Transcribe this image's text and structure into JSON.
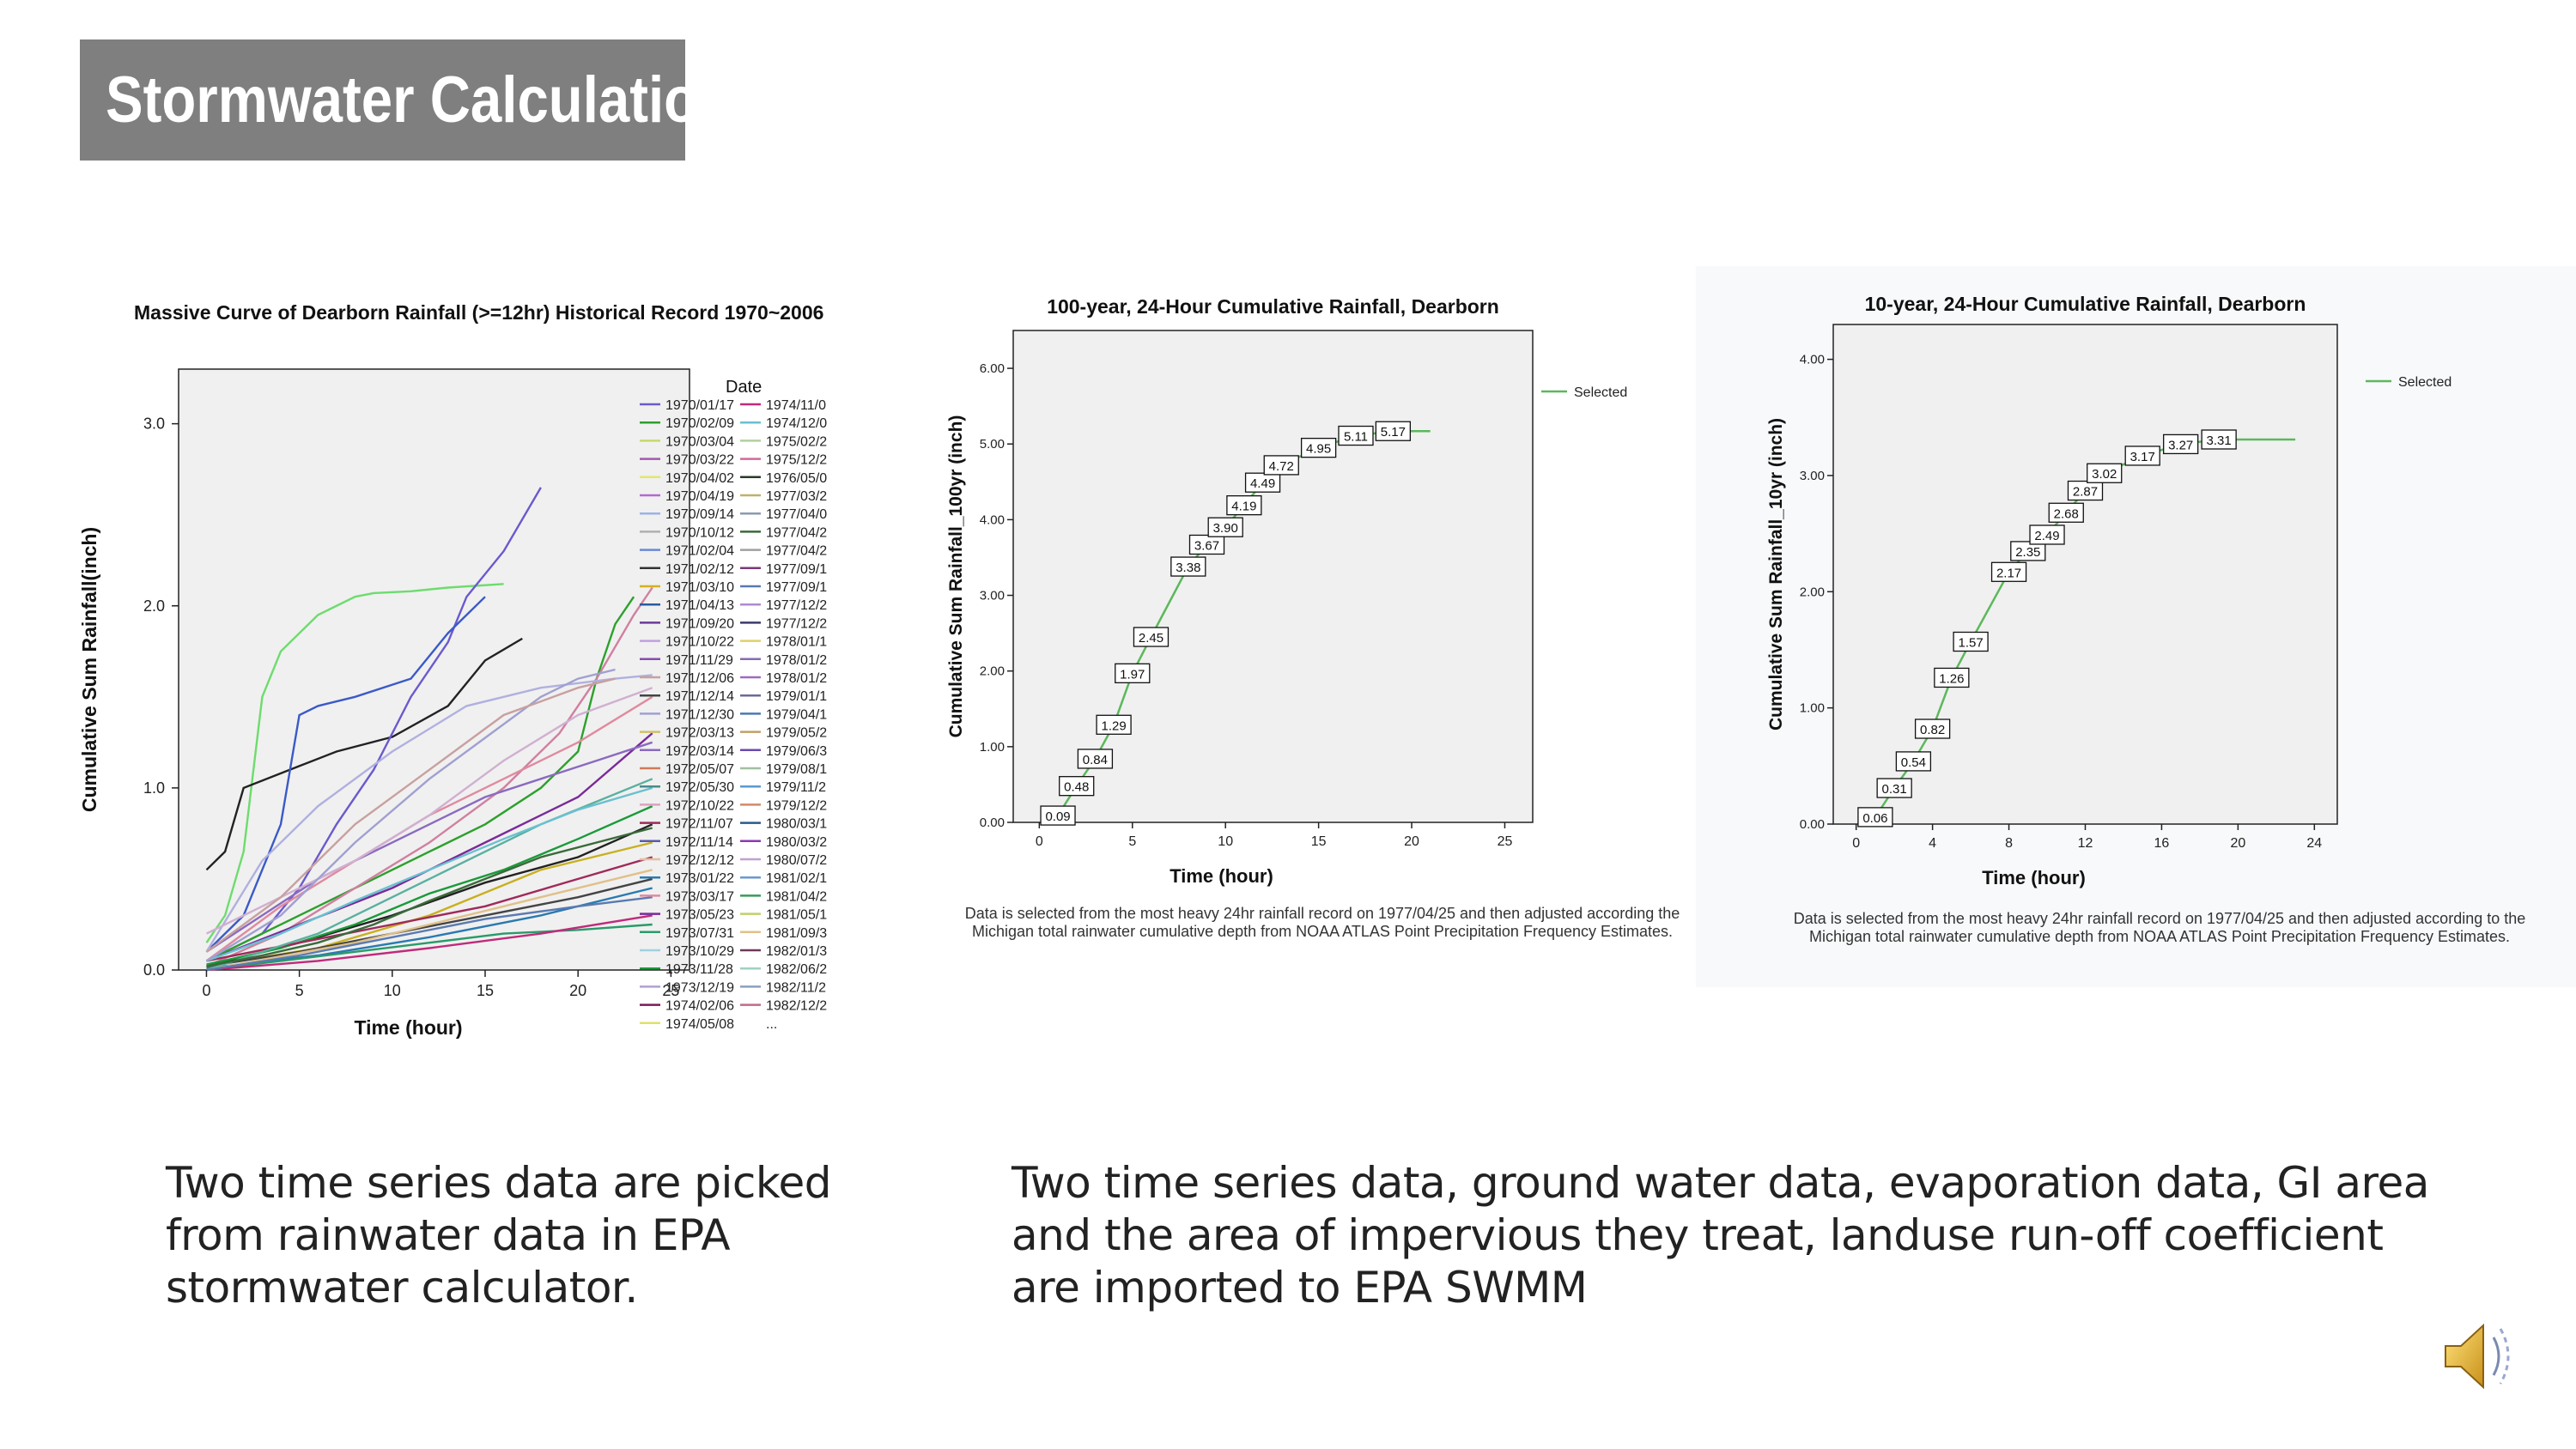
{
  "slide": {
    "title": "Stormwater Calculation",
    "caption_left": "Two time series data are picked from rainwater data in EPA stormwater calculator.",
    "caption_right": "Two time series data, ground water data, evaporation data, GI area and the area of impervious they treat, landuse run-off coefficient are imported to EPA SWMM",
    "speaker_icon": "speaker-icon"
  },
  "chart_data": [
    {
      "type": "line",
      "title": "Massive Curve of Dearborn Rainfall (>=12hr) Historical Record 1970~2006",
      "xlabel": "Time (hour)",
      "ylabel": "Cumulative Sum Rainfall(inch)",
      "xlim": [
        -1.5,
        26
      ],
      "ylim": [
        0,
        3.3
      ],
      "xticks": [
        "0",
        "5",
        "10",
        "15",
        "20",
        "25"
      ],
      "yticks": [
        "0.0",
        "1.0",
        "2.0",
        "3.0"
      ],
      "legend_title": "Date",
      "legend_col1": [
        "1970/01/17",
        "1970/02/09",
        "1970/03/04",
        "1970/03/22",
        "1970/04/02",
        "1970/04/19",
        "1970/09/14",
        "1970/10/12",
        "1971/02/04",
        "1971/02/12",
        "1971/03/10",
        "1971/04/13",
        "1971/09/20",
        "1971/10/22",
        "1971/11/29",
        "1971/12/06",
        "1971/12/14",
        "1971/12/30",
        "1972/03/13",
        "1972/03/14",
        "1972/05/07",
        "1972/05/30",
        "1972/10/22",
        "1972/11/07",
        "1972/11/14",
        "1972/12/12",
        "1973/01/22",
        "1973/03/17",
        "1973/05/23",
        "1973/07/31",
        "1973/10/29",
        "1973/11/28",
        "1973/12/19",
        "1974/02/06",
        "1974/05/08"
      ],
      "legend_col2": [
        "1974/11/0",
        "1974/12/0",
        "1975/02/2",
        "1975/12/2",
        "1976/05/0",
        "1977/03/2",
        "1977/04/0",
        "1977/04/2",
        "1977/04/2",
        "1977/09/1",
        "1977/09/1",
        "1977/12/2",
        "1977/12/2",
        "1978/01/1",
        "1978/01/2",
        "1978/01/2",
        "1979/01/1",
        "1979/04/1",
        "1979/05/2",
        "1979/06/3",
        "1979/08/1",
        "1979/11/2",
        "1979/12/2",
        "1980/03/1",
        "1980/03/2",
        "1980/07/2",
        "1981/02/1",
        "1981/04/2",
        "1981/05/1",
        "1981/09/3",
        "1982/01/3",
        "1982/06/2",
        "1982/11/2",
        "1982/12/2",
        "..."
      ],
      "legend_colors1": [
        "#6a5acd",
        "#2ca02c",
        "#c8d86a",
        "#a05ab0",
        "#e6e66a",
        "#b36ad0",
        "#9ab4e6",
        "#b0b0b0",
        "#6a8ad6",
        "#333333",
        "#d4b020",
        "#2c5aa0",
        "#6a3a9a",
        "#c0a0e0",
        "#8a4ab0",
        "#c8a0a0",
        "#444444",
        "#a0a0d0",
        "#d0c06a",
        "#8a6ac0",
        "#d07a5a",
        "#4a8a8a",
        "#e0a0c0",
        "#a02a5a",
        "#5a5ab0",
        "#e0c0a0",
        "#2a7ab0",
        "#e08aa0",
        "#7a2a9a",
        "#2a9a6a",
        "#a0d0e0",
        "#1a9a3a",
        "#b0a0d0",
        "#7a1a5a",
        "#e0e06a"
      ],
      "legend_colors2": [
        "#c02a7a",
        "#6ac0d0",
        "#b0d0a0",
        "#d06a9a",
        "#2a3a2a",
        "#c0b06a",
        "#8a9ab0",
        "#3a6a3a",
        "#a0a0a0",
        "#7a3a7a",
        "#5a7ab0",
        "#b08ad0",
        "#3a3a6a",
        "#e0d06a",
        "#8a6ab0",
        "#a06ac0",
        "#6a6a9a",
        "#4a7ab0",
        "#c0a06a",
        "#6a4ab0",
        "#a0c0a0",
        "#5a9ad0",
        "#d08a6a",
        "#2a5a8a",
        "#8a3ab0",
        "#c0a0d0",
        "#6a9ad0",
        "#3a9a5a",
        "#c0d06a",
        "#e0c08a",
        "#6a3a5a",
        "#a0d0c0",
        "#8aa0c0",
        "#c06a8a",
        "#888888"
      ],
      "series": [
        {
          "x": [
            0,
            1,
            2,
            3,
            4,
            6,
            8,
            9,
            11,
            13,
            16
          ],
          "values": [
            0.15,
            0.3,
            0.65,
            1.5,
            1.75,
            1.95,
            2.05,
            2.07,
            2.08,
            2.1,
            2.12
          ],
          "color": "#6ddc6d"
        },
        {
          "x": [
            0,
            1,
            2,
            5,
            7,
            10,
            13,
            15,
            17
          ],
          "values": [
            0.55,
            0.65,
            1.0,
            1.12,
            1.2,
            1.28,
            1.45,
            1.7,
            1.82
          ],
          "color": "#222222"
        },
        {
          "x": [
            0,
            3,
            5,
            7,
            9,
            11,
            13,
            14,
            16,
            18
          ],
          "values": [
            0.05,
            0.2,
            0.45,
            0.8,
            1.1,
            1.5,
            1.8,
            2.05,
            2.3,
            2.65
          ],
          "color": "#6a5acd"
        },
        {
          "x": [
            0,
            2,
            4,
            5,
            6,
            8,
            11,
            13,
            15
          ],
          "values": [
            0.1,
            0.3,
            0.8,
            1.4,
            1.45,
            1.5,
            1.6,
            1.85,
            2.05
          ],
          "color": "#3a5ac8"
        },
        {
          "x": [
            0,
            3,
            6,
            9,
            12,
            15,
            18,
            20,
            21,
            22,
            23
          ],
          "values": [
            0.05,
            0.2,
            0.35,
            0.5,
            0.65,
            0.8,
            1.0,
            1.2,
            1.6,
            1.9,
            2.05
          ],
          "color": "#2ca02c"
        },
        {
          "x": [
            0,
            4,
            8,
            12,
            16,
            19,
            21,
            23,
            24
          ],
          "values": [
            0.02,
            0.2,
            0.45,
            0.7,
            1.0,
            1.3,
            1.6,
            1.95,
            2.1
          ],
          "color": "#d080a0"
        },
        {
          "x": [
            0,
            5,
            10,
            15,
            20,
            24
          ],
          "values": [
            0.05,
            0.25,
            0.45,
            0.7,
            0.95,
            1.3
          ],
          "color": "#7a2a9a"
        },
        {
          "x": [
            0,
            5,
            10,
            15,
            20,
            24
          ],
          "values": [
            0.02,
            0.15,
            0.3,
            0.48,
            0.62,
            0.8
          ],
          "color": "#222222"
        },
        {
          "x": [
            0,
            4,
            8,
            12,
            16,
            20,
            24
          ],
          "values": [
            0.03,
            0.12,
            0.25,
            0.42,
            0.55,
            0.72,
            0.9
          ],
          "color": "#1a9a3a"
        },
        {
          "x": [
            0,
            6,
            12,
            18,
            24
          ],
          "values": [
            0.01,
            0.08,
            0.18,
            0.3,
            0.45
          ],
          "color": "#2a7ab0"
        },
        {
          "x": [
            0,
            6,
            12,
            18,
            24
          ],
          "values": [
            0.02,
            0.12,
            0.3,
            0.55,
            0.7
          ],
          "color": "#c8b020"
        },
        {
          "x": [
            0,
            3,
            6,
            9,
            12,
            15,
            18,
            21,
            24
          ],
          "values": [
            0.1,
            0.3,
            0.5,
            0.65,
            0.8,
            0.95,
            1.05,
            1.15,
            1.25
          ],
          "color": "#8a6ac0"
        },
        {
          "x": [
            0,
            4,
            8,
            12,
            16,
            20,
            24
          ],
          "values": [
            0.05,
            0.35,
            0.6,
            0.85,
            1.05,
            1.25,
            1.5
          ],
          "color": "#e08aa0"
        },
        {
          "x": [
            0,
            5,
            10,
            15,
            20,
            24
          ],
          "values": [
            0.02,
            0.1,
            0.2,
            0.3,
            0.4,
            0.5
          ],
          "color": "#444444"
        },
        {
          "x": [
            0,
            5,
            10,
            15,
            20,
            24
          ],
          "values": [
            0.05,
            0.15,
            0.25,
            0.35,
            0.5,
            0.62
          ],
          "color": "#a02a5a"
        },
        {
          "x": [
            0,
            4,
            8,
            12,
            16,
            20,
            24
          ],
          "values": [
            0.0,
            0.05,
            0.1,
            0.15,
            0.2,
            0.22,
            0.25
          ],
          "color": "#2a9a6a"
        },
        {
          "x": [
            0,
            3,
            6,
            10,
            14,
            18,
            22,
            24
          ],
          "values": [
            0.1,
            0.6,
            0.9,
            1.2,
            1.45,
            1.55,
            1.6,
            1.62
          ],
          "color": "#b0b0e0"
        },
        {
          "x": [
            0,
            4,
            8,
            12,
            16,
            20,
            24
          ],
          "values": [
            0.2,
            0.4,
            0.6,
            0.85,
            1.15,
            1.4,
            1.55
          ],
          "color": "#d0b0d0"
        },
        {
          "x": [
            0,
            6,
            12,
            18,
            24
          ],
          "values": [
            0.0,
            0.2,
            0.5,
            0.8,
            1.05
          ],
          "color": "#5ab0a0"
        },
        {
          "x": [
            0,
            6,
            12,
            18,
            24
          ],
          "values": [
            0.0,
            0.05,
            0.12,
            0.2,
            0.3
          ],
          "color": "#c02a7a"
        },
        {
          "x": [
            0,
            4,
            8,
            12,
            16,
            20,
            24
          ],
          "values": [
            0.05,
            0.2,
            0.38,
            0.55,
            0.72,
            0.88,
            1.0
          ],
          "color": "#6ac0d0"
        },
        {
          "x": [
            0,
            3,
            6,
            9,
            12,
            15,
            18,
            21,
            24
          ],
          "values": [
            0.02,
            0.08,
            0.15,
            0.25,
            0.38,
            0.5,
            0.62,
            0.7,
            0.78
          ],
          "color": "#3a6a3a"
        },
        {
          "x": [
            0,
            8,
            16,
            24
          ],
          "values": [
            0.0,
            0.15,
            0.35,
            0.55
          ],
          "color": "#e0c08a"
        },
        {
          "x": [
            0,
            5,
            10,
            15,
            20,
            24
          ],
          "values": [
            0.0,
            0.08,
            0.18,
            0.28,
            0.35,
            0.4
          ],
          "color": "#5a7ab0"
        },
        {
          "x": [
            0,
            4,
            8,
            12,
            16,
            18,
            20,
            22
          ],
          "values": [
            0.05,
            0.3,
            0.7,
            1.05,
            1.35,
            1.5,
            1.6,
            1.65
          ],
          "color": "#a0a0d0"
        },
        {
          "x": [
            0,
            4,
            8,
            12,
            16,
            20,
            22
          ],
          "values": [
            0.1,
            0.4,
            0.8,
            1.1,
            1.4,
            1.55,
            1.6
          ],
          "color": "#c8a0a0"
        }
      ]
    },
    {
      "type": "line",
      "title": "100-year, 24-Hour Cumulative Rainfall, Dearborn",
      "xlabel": "Time (hour)",
      "ylabel": "Cumulative Sum Rainfall_100yr (inch)",
      "xlim": [
        -1.4,
        26.5
      ],
      "ylim": [
        0,
        6.5
      ],
      "xticks": [
        "0",
        "5",
        "10",
        "15",
        "20",
        "25"
      ],
      "xtick_values": [
        0,
        5,
        10,
        15,
        20,
        25
      ],
      "yticks": [
        "0.00",
        "1.00",
        "2.00",
        "3.00",
        "4.00",
        "5.00",
        "6.00"
      ],
      "ytick_values": [
        0,
        1,
        2,
        3,
        4,
        5,
        6
      ],
      "legend": "Selected",
      "note": "Data is selected from the most heavy 24hr rainfall record on 1977/04/25 and then adjusted according the Michigan total rainwater cumulative depth from NOAA ATLAS Point Precipitation Frequency Estimates.",
      "x": [
        1,
        2,
        3,
        4,
        5,
        6,
        8,
        9,
        10,
        11,
        12,
        13,
        15,
        17,
        19,
        21
      ],
      "values": [
        0.09,
        0.48,
        0.84,
        1.29,
        1.97,
        2.45,
        3.38,
        3.67,
        3.9,
        4.19,
        4.49,
        4.72,
        4.95,
        5.11,
        5.17,
        5.17
      ],
      "labels": [
        "0.09",
        "0.48",
        "0.84",
        "1.29",
        "1.97",
        "2.45",
        "3.38",
        "3.67",
        "3.90",
        "4.19",
        "4.49",
        "4.72",
        "4.95",
        "5.11",
        "5.17"
      ]
    },
    {
      "type": "line",
      "title": "10-year, 24-Hour Cumulative Rainfall, Dearborn",
      "xlabel": "Time (hour)",
      "ylabel": "Cumulative Sum Rainfall_10yr (inch)",
      "xlim": [
        -1.2,
        25.2
      ],
      "ylim": [
        0,
        4.3
      ],
      "xticks": [
        "0",
        "4",
        "8",
        "12",
        "16",
        "20",
        "24"
      ],
      "xtick_values": [
        0,
        4,
        8,
        12,
        16,
        20,
        24
      ],
      "yticks": [
        "0.00",
        "1.00",
        "2.00",
        "3.00",
        "4.00"
      ],
      "ytick_values": [
        0,
        1,
        2,
        3,
        4
      ],
      "legend": "Selected",
      "note": "Data is selected from the most heavy 24hr rainfall record on 1977/04/25 and then adjusted according to the Michigan total rainwater cumulative depth from NOAA ATLAS Point Precipitation Frequency Estimates.",
      "x": [
        1,
        2,
        3,
        4,
        5,
        6,
        8,
        9,
        10,
        11,
        12,
        13,
        15,
        17,
        19,
        21,
        23
      ],
      "values": [
        0.06,
        0.31,
        0.54,
        0.82,
        1.26,
        1.57,
        2.17,
        2.35,
        2.49,
        2.68,
        2.87,
        3.02,
        3.17,
        3.27,
        3.31,
        3.31,
        3.31
      ],
      "labels": [
        "0.06",
        "0.31",
        "0.54",
        "0.82",
        "1.26",
        "1.57",
        "2.17",
        "2.35",
        "2.49",
        "2.68",
        "2.87",
        "3.02",
        "3.17",
        "3.27",
        "3.31"
      ]
    }
  ]
}
